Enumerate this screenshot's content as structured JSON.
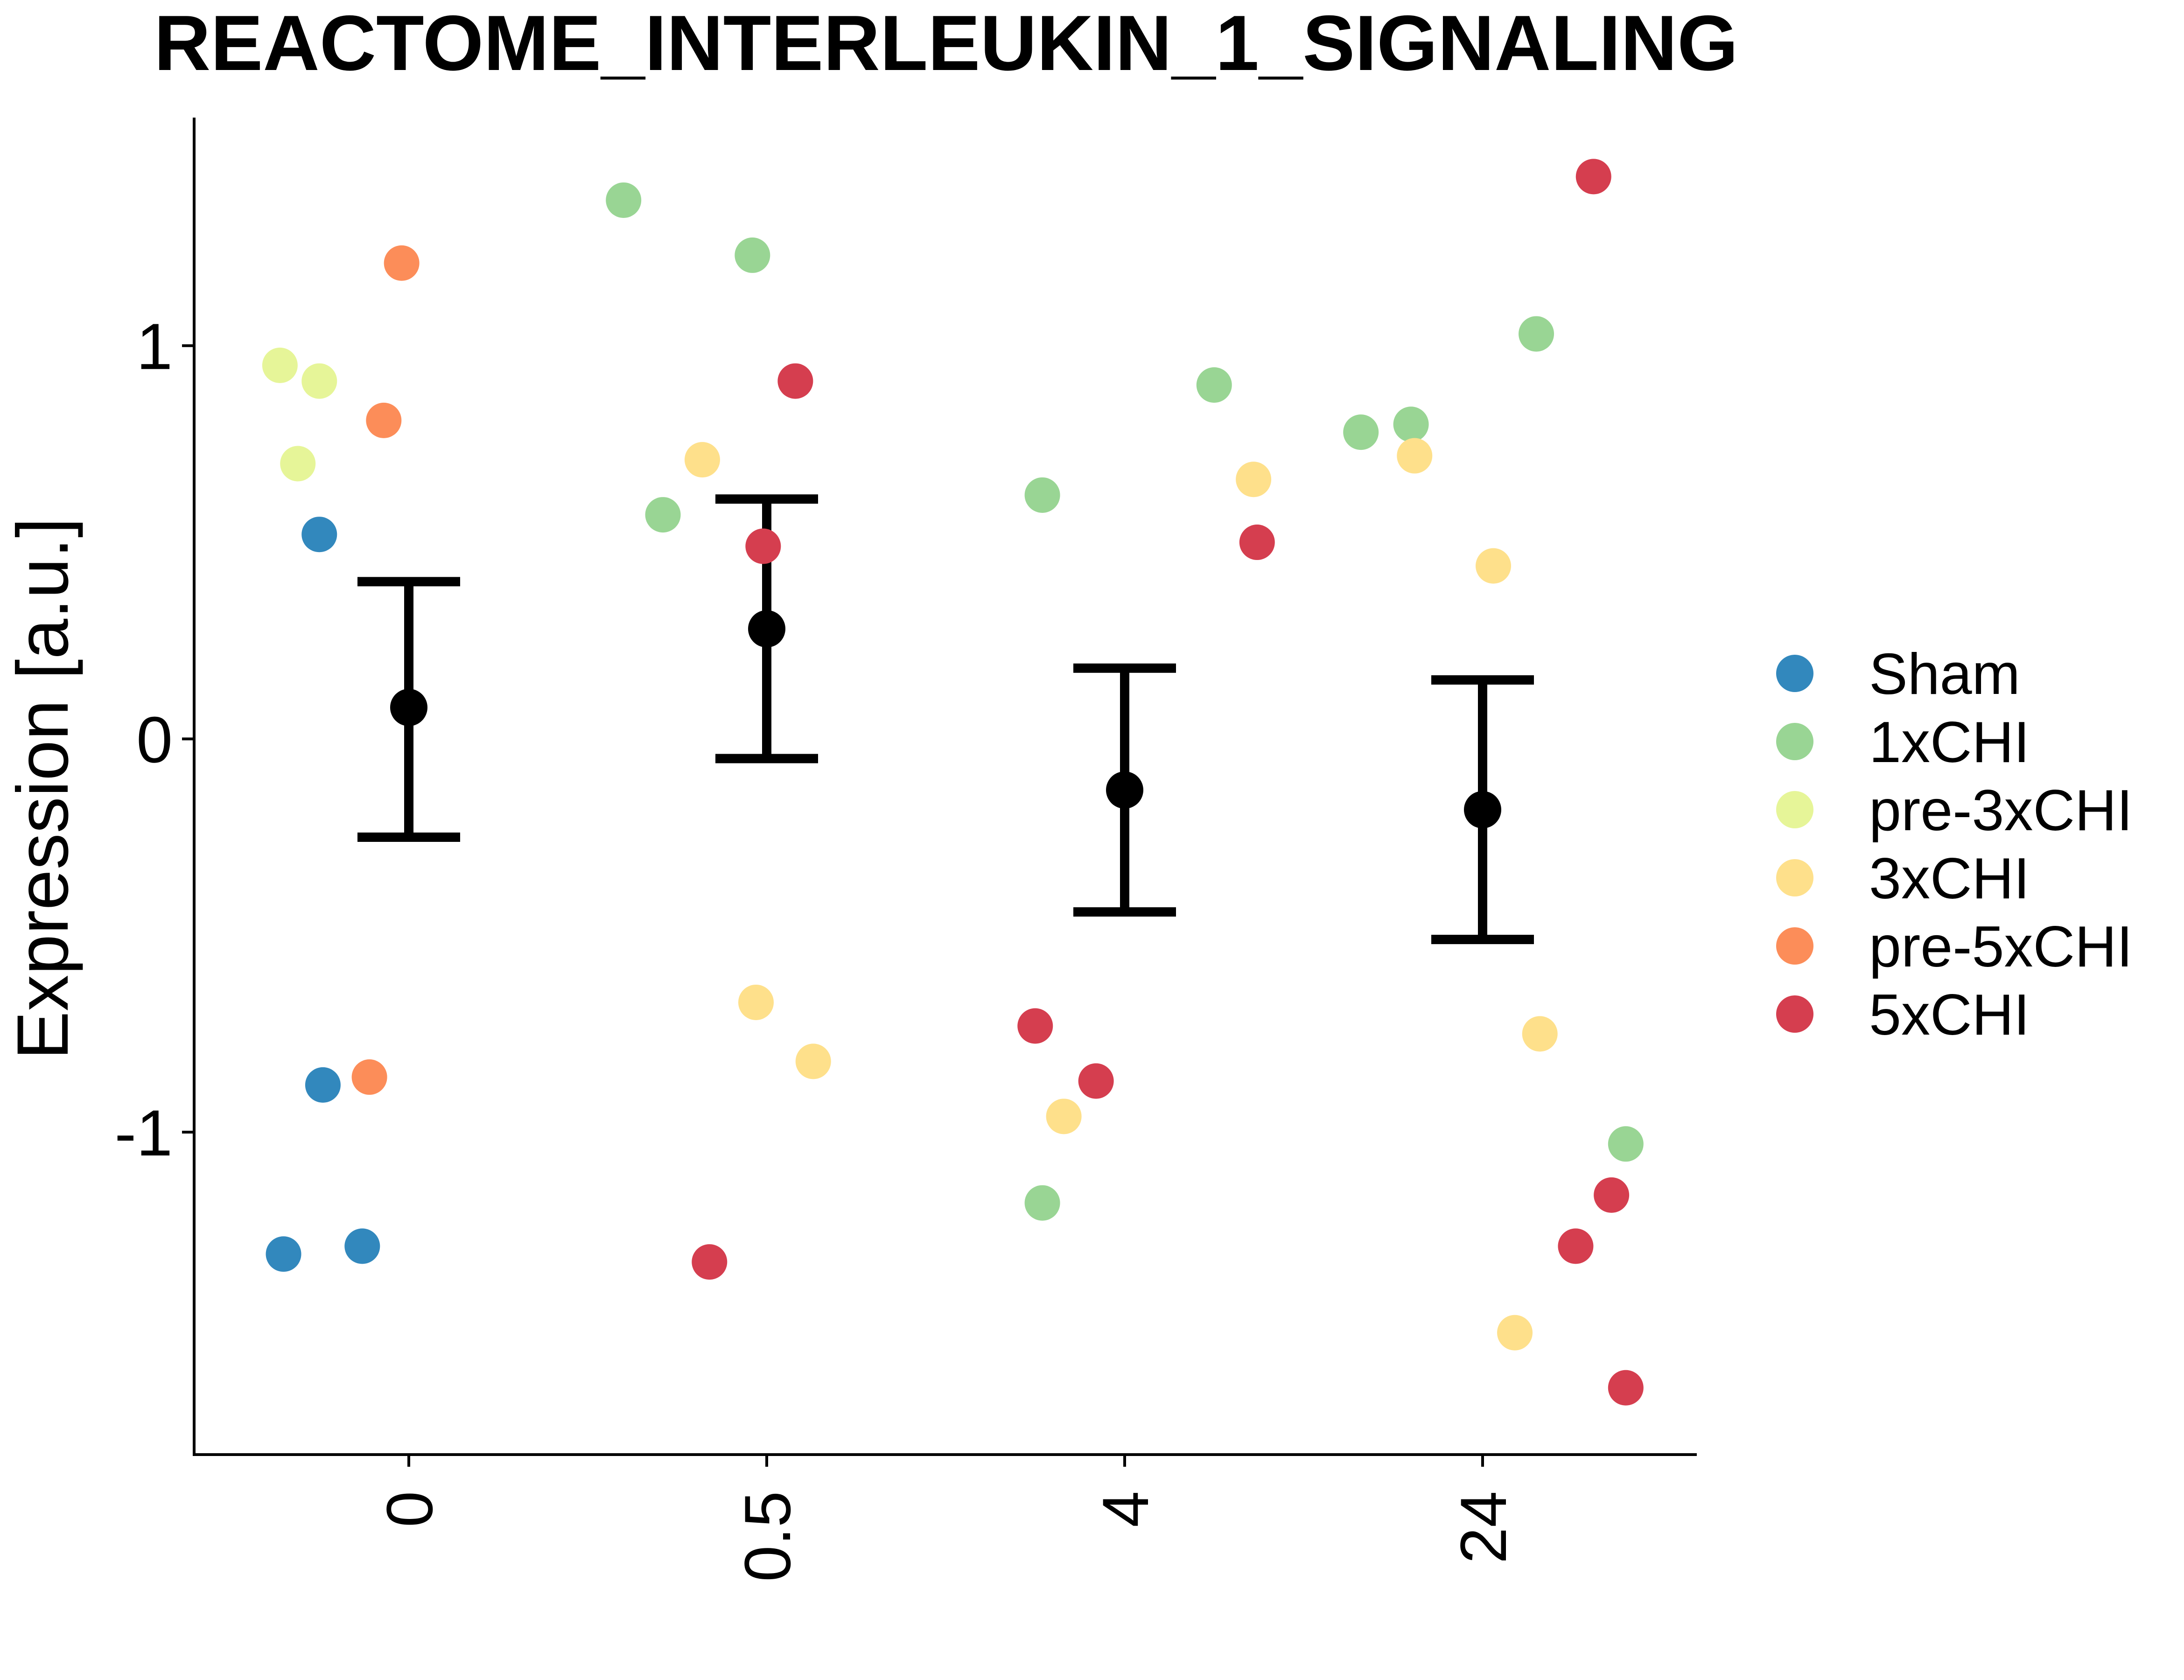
{
  "chart_data": {
    "type": "scatter",
    "title": "REACTOME_INTERLEUKIN_1_SIGNALING",
    "xlabel": "",
    "ylabel": "Expression [a.u.]",
    "categories": [
      "0",
      "0.5",
      "4",
      "24"
    ],
    "ylim": [
      -1.82,
      1.58
    ],
    "yticks": [
      -1,
      0,
      1
    ],
    "ytick_labels": [
      "-1",
      "0",
      "1"
    ],
    "grid": false,
    "legend_position": "right",
    "series": [
      {
        "name": "Sham",
        "color": "#3288BD",
        "points": [
          {
            "category": "0",
            "jitter": -0.35,
            "y": -1.31
          },
          {
            "category": "0",
            "jitter": -0.25,
            "y": 0.52
          },
          {
            "category": "0",
            "jitter": -0.24,
            "y": -0.88
          },
          {
            "category": "0",
            "jitter": -0.13,
            "y": -1.29
          }
        ]
      },
      {
        "name": "1xCHI",
        "color": "#99D594",
        "points": [
          {
            "category": "0.5",
            "jitter": -0.4,
            "y": 1.37
          },
          {
            "category": "0.5",
            "jitter": -0.29,
            "y": 0.57
          },
          {
            "category": "0.5",
            "jitter": -0.04,
            "y": 1.23
          },
          {
            "category": "4",
            "jitter": -0.23,
            "y": 0.62
          },
          {
            "category": "4",
            "jitter": -0.23,
            "y": -1.18
          },
          {
            "category": "4",
            "jitter": 0.25,
            "y": 0.9
          },
          {
            "category": "24",
            "jitter": -0.34,
            "y": 0.78
          },
          {
            "category": "24",
            "jitter": -0.2,
            "y": 0.8
          },
          {
            "category": "24",
            "jitter": 0.15,
            "y": 1.03
          },
          {
            "category": "24",
            "jitter": 0.4,
            "y": -1.03
          }
        ]
      },
      {
        "name": "pre-3xCHI",
        "color": "#E6F598",
        "points": [
          {
            "category": "0",
            "jitter": -0.36,
            "y": 0.95
          },
          {
            "category": "0",
            "jitter": -0.25,
            "y": 0.91
          },
          {
            "category": "0",
            "jitter": -0.31,
            "y": 0.7
          }
        ]
      },
      {
        "name": "3xCHI",
        "color": "#FEE08B",
        "points": [
          {
            "category": "0.5",
            "jitter": -0.18,
            "y": 0.71
          },
          {
            "category": "0.5",
            "jitter": -0.03,
            "y": -0.67
          },
          {
            "category": "0.5",
            "jitter": 0.13,
            "y": -0.82
          },
          {
            "category": "4",
            "jitter": -0.17,
            "y": -0.96
          },
          {
            "category": "4",
            "jitter": 0.36,
            "y": 0.66
          },
          {
            "category": "24",
            "jitter": -0.19,
            "y": 0.72
          },
          {
            "category": "24",
            "jitter": 0.03,
            "y": 0.44
          },
          {
            "category": "24",
            "jitter": 0.09,
            "y": -1.51
          },
          {
            "category": "24",
            "jitter": 0.16,
            "y": -0.75
          }
        ]
      },
      {
        "name": "pre-5xCHI",
        "color": "#FC8D59",
        "points": [
          {
            "category": "0",
            "jitter": -0.02,
            "y": 1.21
          },
          {
            "category": "0",
            "jitter": -0.07,
            "y": 0.81
          },
          {
            "category": "0",
            "jitter": -0.11,
            "y": -0.86
          }
        ]
      },
      {
        "name": "5xCHI",
        "color": "#D53E4F",
        "points": [
          {
            "category": "0.5",
            "jitter": -0.16,
            "y": -1.33
          },
          {
            "category": "0.5",
            "jitter": -0.01,
            "y": 0.49
          },
          {
            "category": "0.5",
            "jitter": 0.08,
            "y": 0.91
          },
          {
            "category": "4",
            "jitter": -0.25,
            "y": -0.73
          },
          {
            "category": "4",
            "jitter": -0.08,
            "y": -0.87
          },
          {
            "category": "4",
            "jitter": 0.37,
            "y": 0.5
          },
          {
            "category": "24",
            "jitter": 0.26,
            "y": -1.29
          },
          {
            "category": "24",
            "jitter": 0.31,
            "y": 1.43
          },
          {
            "category": "24",
            "jitter": 0.36,
            "y": -1.16
          },
          {
            "category": "24",
            "jitter": 0.4,
            "y": -1.65
          }
        ]
      }
    ],
    "summary": {
      "color": "#000000",
      "items": [
        {
          "category": "0",
          "mean": 0.08,
          "lower": -0.25,
          "upper": 0.4
        },
        {
          "category": "0.5",
          "mean": 0.28,
          "lower": -0.05,
          "upper": 0.61
        },
        {
          "category": "4",
          "mean": -0.13,
          "lower": -0.44,
          "upper": 0.18
        },
        {
          "category": "24",
          "mean": -0.18,
          "lower": -0.51,
          "upper": 0.15
        }
      ]
    }
  }
}
